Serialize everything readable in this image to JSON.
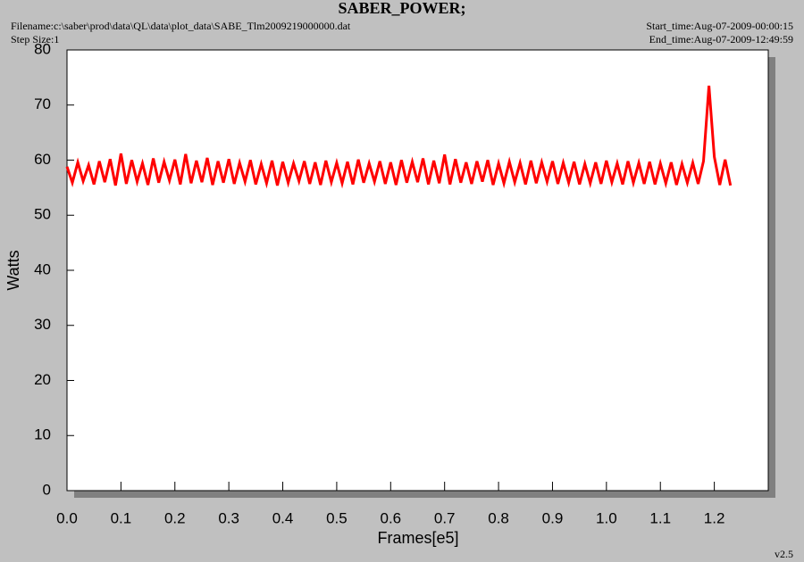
{
  "chart_data": {
    "type": "line",
    "title": "SABER_POWER;",
    "filename": "Filename:c:\\saber\\prod\\data\\QL\\data\\plot_data\\SABE_Tlm2009219000000.dat",
    "step_size": "Step Size:1",
    "start_time": "Start_time:Aug-07-2009-00:00:15",
    "end_time": "End_time:Aug-07-2009-12:49:59",
    "version": "v2.5",
    "xlabel": "Frames[e5]",
    "ylabel": "Watts",
    "xlim": [
      0,
      1.3
    ],
    "ylim": [
      0,
      80
    ],
    "xticks": [
      {
        "value": 0,
        "label": "0.0"
      },
      0.1,
      0.2,
      0.3,
      0.4,
      0.5,
      0.6,
      0.7,
      0.8,
      0.9,
      {
        "value": 1,
        "label": "1.0"
      },
      1.1,
      1.2
    ],
    "yticks": [
      0,
      10,
      20,
      30,
      40,
      50,
      60,
      70,
      80
    ],
    "x": [
      0,
      0.01,
      0.02,
      0.03,
      0.04,
      0.05,
      0.06,
      0.07,
      0.08,
      0.09,
      0.1,
      0.11,
      0.12,
      0.13,
      0.14,
      0.15,
      0.16,
      0.17,
      0.18,
      0.19,
      0.2,
      0.21,
      0.22,
      0.23,
      0.24,
      0.25,
      0.26,
      0.27,
      0.28,
      0.29,
      0.3,
      0.31,
      0.32,
      0.33,
      0.34,
      0.35,
      0.36,
      0.37,
      0.38,
      0.39,
      0.4,
      0.41,
      0.42,
      0.43,
      0.44,
      0.45,
      0.46,
      0.47,
      0.48,
      0.49,
      0.5,
      0.51,
      0.52,
      0.53,
      0.54,
      0.55,
      0.56,
      0.57,
      0.58,
      0.59,
      0.6,
      0.61,
      0.62,
      0.63,
      0.64,
      0.65,
      0.66,
      0.67,
      0.68,
      0.69,
      0.7,
      0.71,
      0.72,
      0.73,
      0.74,
      0.75,
      0.76,
      0.77,
      0.78,
      0.79,
      0.8,
      0.81,
      0.82,
      0.83,
      0.84,
      0.85,
      0.86,
      0.87,
      0.88,
      0.89,
      0.9,
      0.91,
      0.92,
      0.93,
      0.94,
      0.95,
      0.96,
      0.97,
      0.98,
      0.99,
      1,
      1.01,
      1.02,
      1.03,
      1.04,
      1.05,
      1.06,
      1.07,
      1.08,
      1.09,
      1.1,
      1.11,
      1.12,
      1.13,
      1.14,
      1.15,
      1.16,
      1.17,
      1.18,
      1.19,
      1.2,
      1.21,
      1.22,
      1.23
    ],
    "series": [
      {
        "color": "#ff0000",
        "values": [
          58.8,
          55.9,
          59.6,
          56.2,
          59.1,
          55.6,
          59.8,
          56.0,
          60.2,
          55.4,
          61.2,
          55.7,
          60.0,
          56.1,
          59.4,
          55.5,
          60.3,
          55.9,
          59.7,
          56.3,
          60.1,
          55.6,
          61.1,
          55.8,
          59.9,
          56.0,
          60.4,
          55.5,
          59.8,
          55.9,
          60.2,
          55.7,
          59.5,
          56.1,
          60.0,
          55.6,
          59.3,
          55.8,
          59.9,
          55.4,
          59.7,
          55.9,
          59.4,
          56.2,
          59.8,
          55.7,
          59.6,
          55.5,
          59.9,
          56.0,
          59.5,
          55.8,
          59.7,
          55.6,
          60.1,
          55.9,
          59.4,
          56.1,
          59.8,
          55.7,
          59.6,
          55.5,
          60.0,
          55.9,
          59.7,
          56.0,
          60.3,
          55.6,
          59.9,
          55.8,
          61.0,
          55.6,
          60.2,
          55.9,
          59.6,
          55.7,
          59.8,
          56.1,
          60.0,
          55.5,
          59.4,
          55.8,
          59.7,
          56.0,
          59.5,
          55.6,
          59.9,
          55.8,
          59.6,
          56.1,
          59.8,
          55.7,
          59.5,
          55.9,
          59.7,
          55.6,
          59.3,
          55.8,
          59.6,
          55.7,
          59.9,
          56.0,
          59.4,
          55.6,
          59.8,
          55.9,
          59.5,
          55.7,
          59.7,
          55.6,
          59.4,
          55.8,
          59.6,
          55.5,
          59.3,
          55.9,
          59.5,
          55.7,
          59.8,
          73.5,
          60.6,
          55.5,
          60.1,
          55.4
        ]
      }
    ]
  }
}
